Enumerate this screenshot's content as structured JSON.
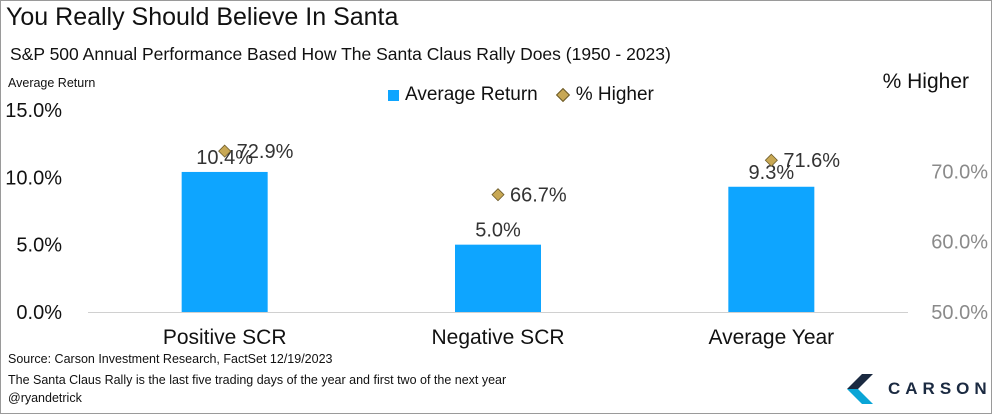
{
  "header": {
    "title": "You Really Should Believe In Santa",
    "subtitle": "S&P 500 Annual Performance Based How The Santa Claus Rally Does (1950 - 2023)"
  },
  "footer": {
    "source": "Source: Carson Investment Research, FactSet 12/19/2023",
    "note": "The Santa Claus Rally is the last five trading days of the year and first two of the next year",
    "handle": "@ryandetrick"
  },
  "logo": {
    "text": "CARSON",
    "icon": "carson-chevron-logo-icon"
  },
  "chart_data": {
    "type": "bar",
    "categories": [
      "Positive SCR",
      "Negative SCR",
      "Average Year"
    ],
    "series": [
      {
        "name": "Average Return",
        "axis": "left",
        "type": "bar",
        "values": [
          10.4,
          5.0,
          9.3
        ],
        "labels": [
          "10.4%",
          "5.0%",
          "9.3%"
        ],
        "color": "#0ea5ff"
      },
      {
        "name": "% Higher",
        "axis": "right",
        "type": "scatter",
        "marker": "diamond",
        "values": [
          72.9,
          66.7,
          71.6
        ],
        "labels": [
          "72.9%",
          "66.7%",
          "71.6%"
        ],
        "color": "#c8a854"
      }
    ],
    "ylabel_left": "Average Return",
    "ylabel_right": "% Higher",
    "ylim_left": [
      0,
      15
    ],
    "ylim_right": [
      50,
      78.75
    ],
    "yticks_left": [
      0,
      5,
      10,
      15
    ],
    "yticks_left_labels": [
      "0.0%",
      "5.0%",
      "10.0%",
      "15.0%"
    ],
    "yticks_right": [
      50,
      60,
      70
    ],
    "yticks_right_labels": [
      "50.0%",
      "60.0%",
      "70.0%"
    ],
    "grid": false,
    "legend": "top-center"
  }
}
